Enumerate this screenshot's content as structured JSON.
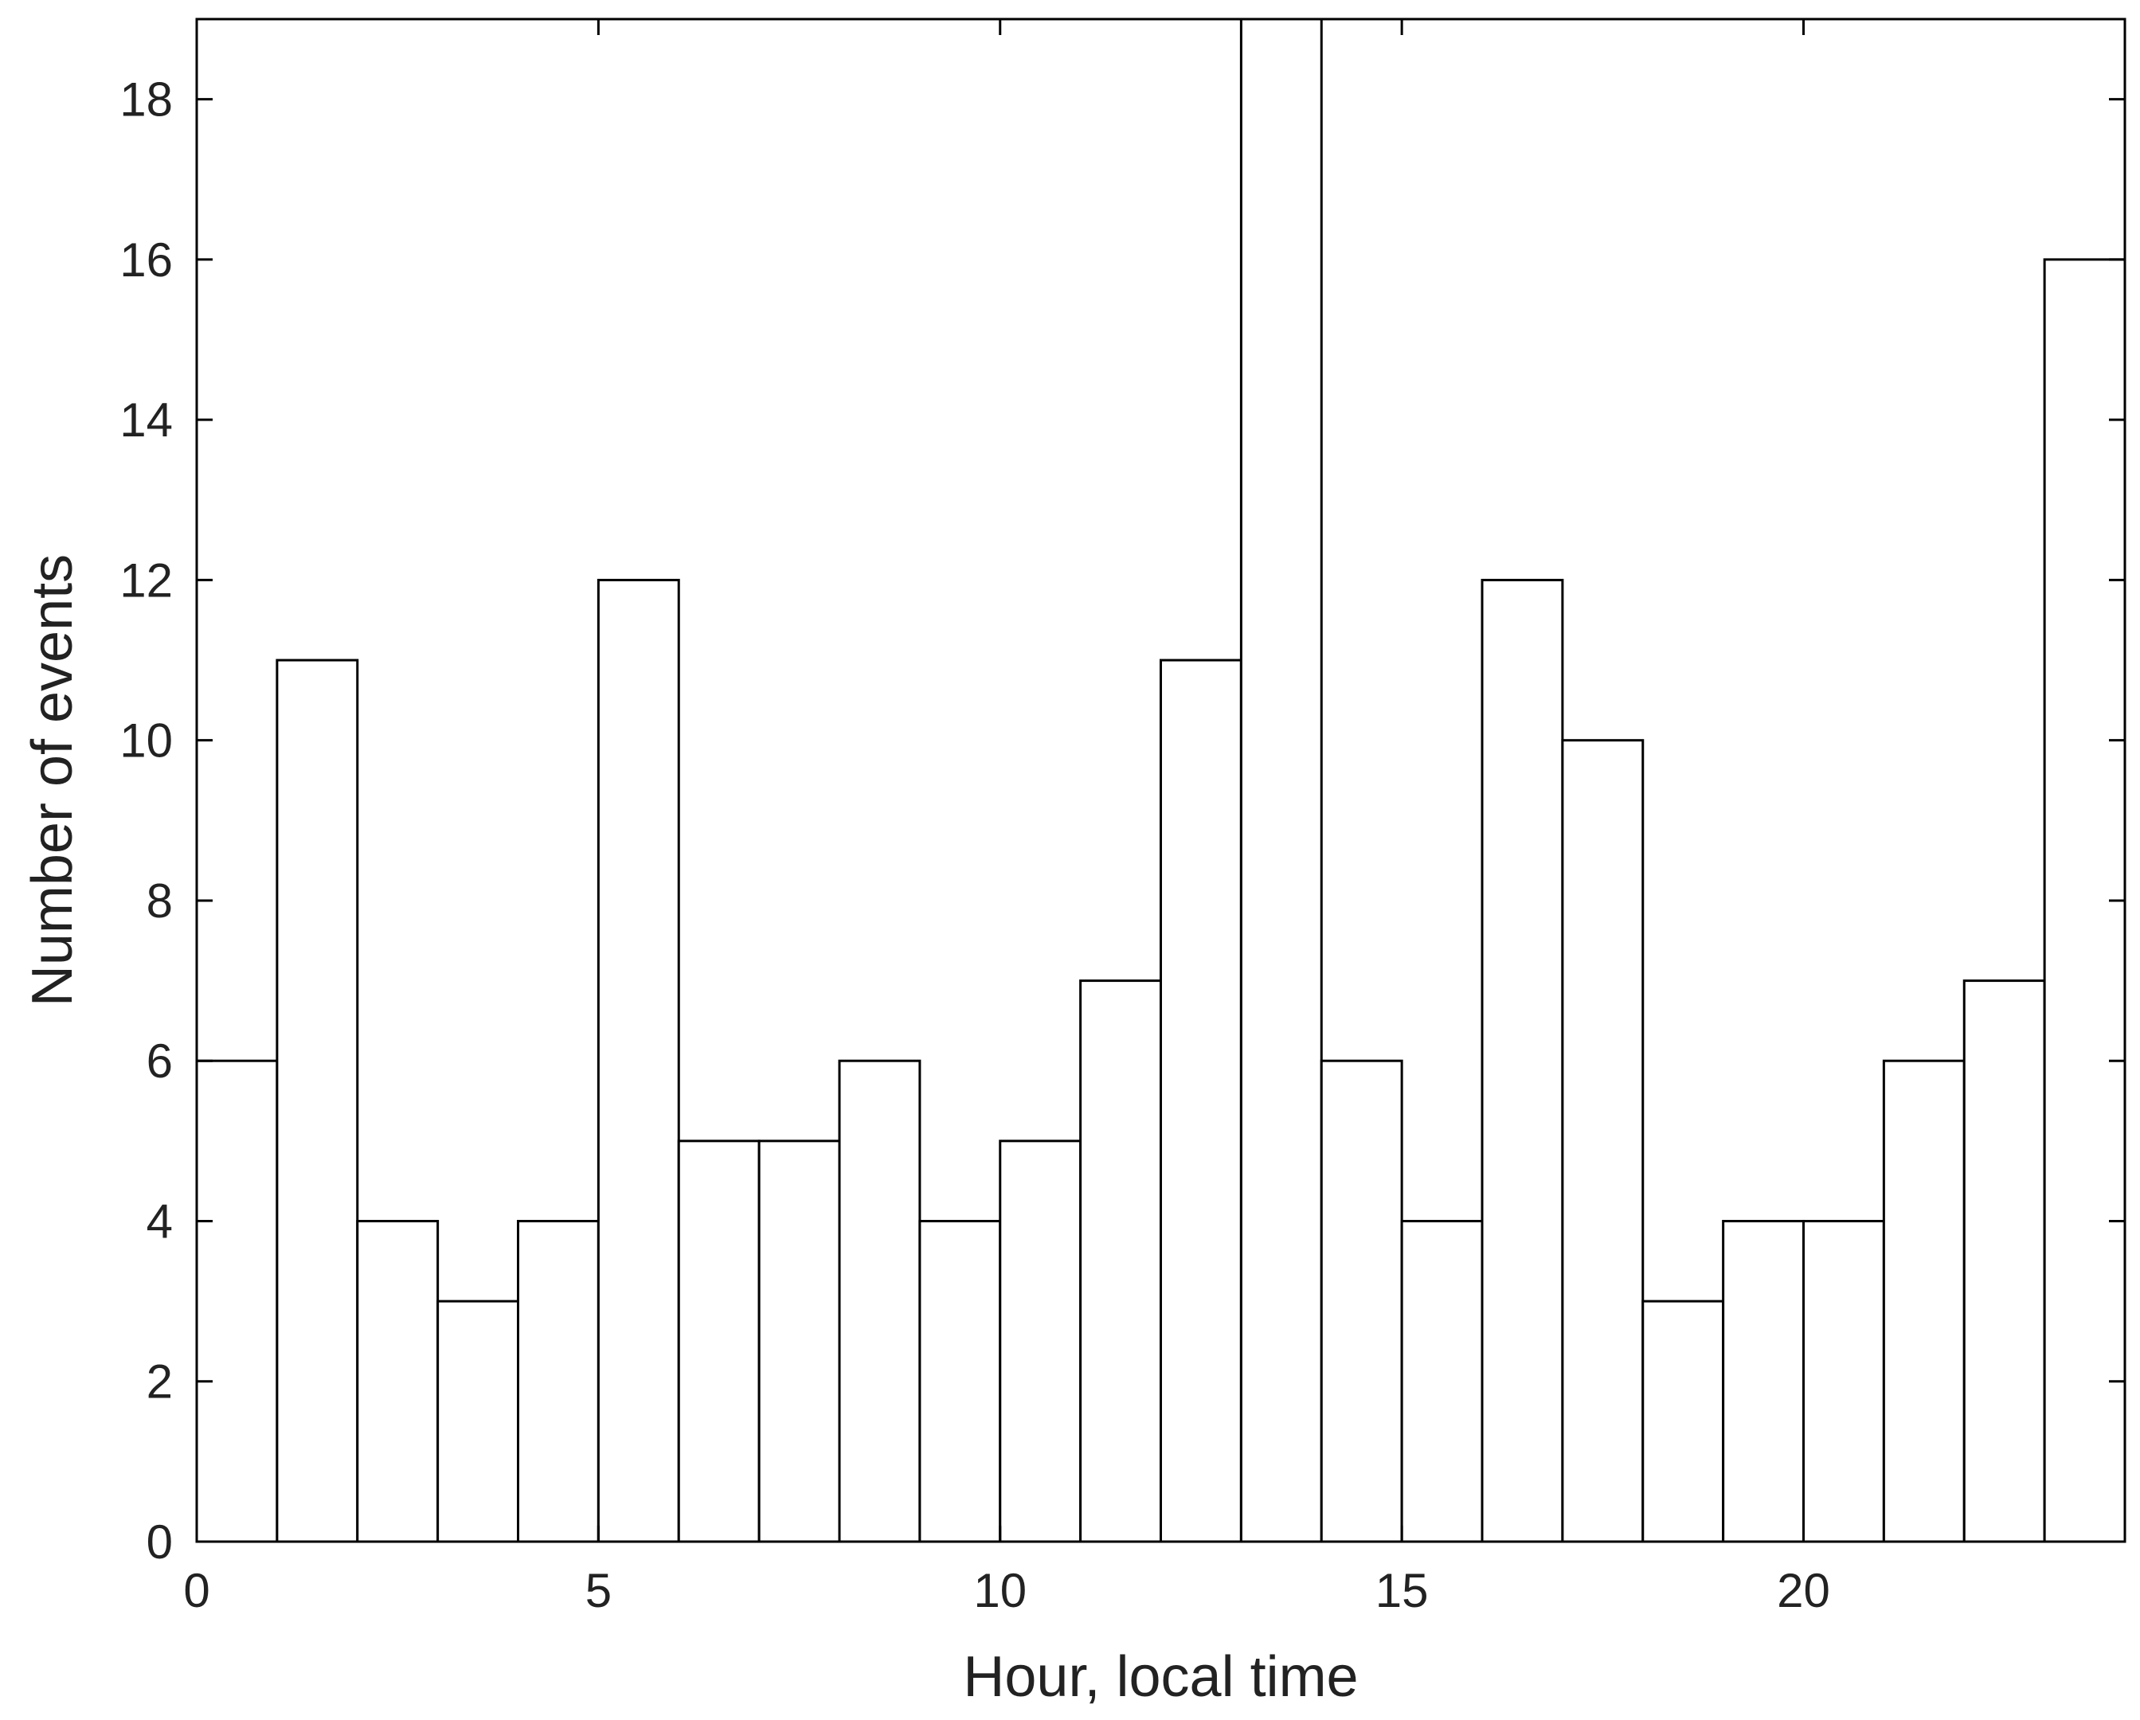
{
  "chart_data": {
    "type": "bar",
    "histogram": true,
    "bin_edges": [
      0,
      1,
      2,
      3,
      4,
      5,
      6,
      7,
      8,
      9,
      10,
      11,
      12,
      13,
      14,
      15,
      16,
      17,
      18,
      19,
      20,
      21,
      22,
      23,
      24
    ],
    "values": [
      6,
      11,
      4,
      3,
      4,
      12,
      5,
      5,
      6,
      4,
      5,
      7,
      11,
      19,
      6,
      4,
      12,
      10,
      3,
      4,
      4,
      6,
      7,
      16
    ],
    "xlabel": "Hour, local time",
    "ylabel": "Number of events",
    "xlim": [
      0,
      24
    ],
    "ylim": [
      0,
      19
    ],
    "x_ticks": [
      0,
      5,
      10,
      15,
      20
    ],
    "y_ticks": [
      0,
      2,
      4,
      6,
      8,
      10,
      12,
      14,
      16,
      18
    ],
    "grid": false,
    "bar_fill": "#ffffff",
    "bar_edge": "#000000"
  }
}
